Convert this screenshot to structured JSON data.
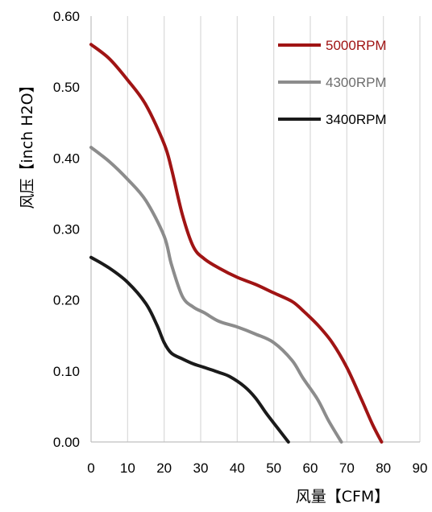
{
  "chart_data": {
    "type": "line",
    "title": "",
    "xlabel": "风量【CFM】",
    "ylabel": "风压【inch H2O】",
    "xlim": [
      0,
      90
    ],
    "ylim": [
      0,
      0.6
    ],
    "x_ticks": [
      0,
      10,
      20,
      30,
      40,
      50,
      60,
      70,
      80,
      90
    ],
    "y_ticks": [
      0.0,
      0.1,
      0.2,
      0.3,
      0.4,
      0.5,
      0.6
    ],
    "y_tick_labels": [
      "0.00",
      "0.10",
      "0.20",
      "0.30",
      "0.40",
      "0.50",
      "0.60"
    ],
    "grid": "vertical",
    "legend_position": "top-right",
    "series": [
      {
        "name": "5000RPM",
        "color": "#a01414",
        "text_color": "#a01414",
        "x": [
          0,
          5,
          10,
          15,
          20,
          22,
          25,
          28,
          31,
          35,
          40,
          45,
          50,
          55,
          58,
          62,
          66,
          70,
          74,
          77,
          79.5
        ],
        "y": [
          0.56,
          0.54,
          0.51,
          0.475,
          0.42,
          0.385,
          0.32,
          0.275,
          0.258,
          0.245,
          0.232,
          0.222,
          0.21,
          0.198,
          0.185,
          0.165,
          0.14,
          0.105,
          0.06,
          0.025,
          0.0
        ]
      },
      {
        "name": "4300RPM",
        "color": "#8c8c8c",
        "text_color": "#6e6e6e",
        "x": [
          0,
          5,
          10,
          15,
          20,
          22,
          25,
          28,
          31,
          35,
          40,
          45,
          50,
          55,
          58,
          62,
          65,
          68.5
        ],
        "y": [
          0.415,
          0.395,
          0.37,
          0.34,
          0.29,
          0.25,
          0.205,
          0.19,
          0.182,
          0.17,
          0.162,
          0.152,
          0.14,
          0.115,
          0.09,
          0.06,
          0.03,
          0.0
        ]
      },
      {
        "name": "3400RPM",
        "color": "#1a1a1a",
        "text_color": "#000000",
        "x": [
          0,
          5,
          10,
          15,
          18,
          20,
          22,
          25,
          28,
          31,
          35,
          38,
          42,
          45,
          48,
          51,
          54
        ],
        "y": [
          0.26,
          0.245,
          0.225,
          0.195,
          0.165,
          0.14,
          0.125,
          0.117,
          0.11,
          0.105,
          0.098,
          0.092,
          0.078,
          0.062,
          0.04,
          0.02,
          0.0
        ]
      }
    ]
  }
}
